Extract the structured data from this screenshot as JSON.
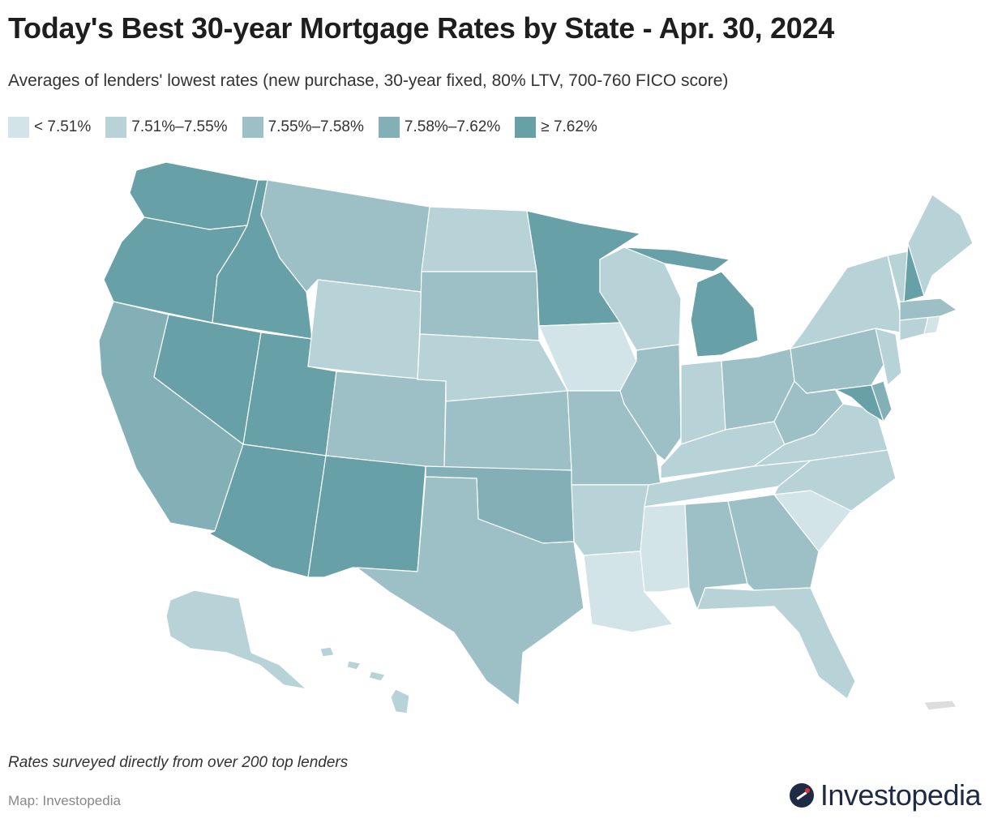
{
  "header": {
    "title": "Today's Best 30-year Mortgage Rates by State - Apr. 30, 2024",
    "subtitle": "Averages of lenders' lowest rates (new purchase, 30-year fixed, 80% LTV, 700-760 FICO score)"
  },
  "legend": [
    {
      "label": "< 7.51%",
      "color": "#d3e4e8"
    },
    {
      "label": "7.51%–7.55%",
      "color": "#b8d3d8"
    },
    {
      "label": "7.55%–7.58%",
      "color": "#9dc0c6"
    },
    {
      "label": "7.58%–7.62%",
      "color": "#82b0b6"
    },
    {
      "label": "≥ 7.62%",
      "color": "#68a0a8"
    }
  ],
  "map_data": {
    "no_data_color": "#dddddd",
    "states": {
      "WA": 4,
      "OR": 4,
      "CA": 3,
      "ID": 4,
      "NV": 4,
      "UT": 4,
      "AZ": 4,
      "MT": 2,
      "WY": 1,
      "CO": 2,
      "NM": 4,
      "ND": 1,
      "SD": 2,
      "NE": 1,
      "KS": 2,
      "OK": 3,
      "TX": 2,
      "MN": 4,
      "IA": 0,
      "MO": 2,
      "AR": 1,
      "LA": 0,
      "WI": 1,
      "IL": 2,
      "MI": 4,
      "IN": 1,
      "OH": 2,
      "KY": 1,
      "TN": 1,
      "MS": 0,
      "AL": 2,
      "GA": 2,
      "FL": 1,
      "SC": 0,
      "NC": 1,
      "VA": 1,
      "WV": 2,
      "PA": 2,
      "NY": 1,
      "VT": 1,
      "NH": 4,
      "ME": 1,
      "MA": 2,
      "RI": 0,
      "CT": 1,
      "NJ": 1,
      "DE": 3,
      "MD": 4,
      "AK": 1,
      "HI": 1
    }
  },
  "footer": {
    "note": "Rates surveyed directly from over 200 top lenders",
    "source": "Map: Investopedia",
    "brand": "Investopedia"
  }
}
